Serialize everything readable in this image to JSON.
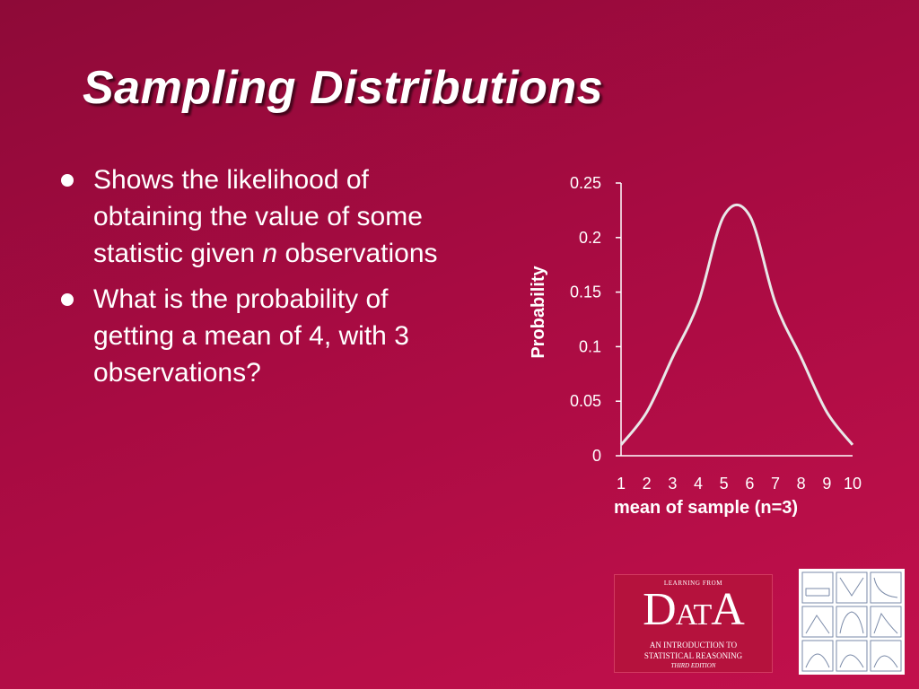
{
  "slide": {
    "title": "Sampling Distributions",
    "bullets": [
      {
        "pre": "Shows the likelihood of obtaining the value of some statistic given ",
        "italic": "n",
        "post": " observations"
      },
      {
        "pre": "What is the probability of getting a mean of 4, with 3 observations?",
        "italic": "",
        "post": ""
      }
    ]
  },
  "logo": {
    "top_text": "LEARNING FROM",
    "word_d": "D",
    "word_at": "AT",
    "word_a": "A",
    "subtitle_line1": "AN INTRODUCTION TO",
    "subtitle_line2": "STATISTICAL REASONING",
    "edition": "THIRD EDITION",
    "icon": "data-book-cover"
  },
  "thumbnail_grid": {
    "icon": "distribution-shapes-grid"
  },
  "colors": {
    "background": "#a80b42",
    "curve": "#e8e8e8",
    "text": "#ffffff"
  },
  "chart_data": {
    "type": "line",
    "x": [
      1,
      2,
      3,
      4,
      5,
      6,
      7,
      8,
      9,
      10
    ],
    "series": [
      {
        "values": [
          0.01,
          0.04,
          0.09,
          0.14,
          0.22,
          0.22,
          0.14,
          0.09,
          0.04,
          0.01
        ]
      }
    ],
    "xlabel": "mean of sample (n=3)",
    "ylabel": "Probability",
    "ylim": [
      0,
      0.25
    ],
    "yticks": [
      "0",
      "0.05",
      "0.1",
      "0.15",
      "0.2",
      "0.25"
    ],
    "xticks": [
      "1",
      "2",
      "3",
      "4",
      "5",
      "6",
      "7",
      "8",
      "9",
      "10"
    ],
    "grid": false,
    "legend": "none"
  }
}
